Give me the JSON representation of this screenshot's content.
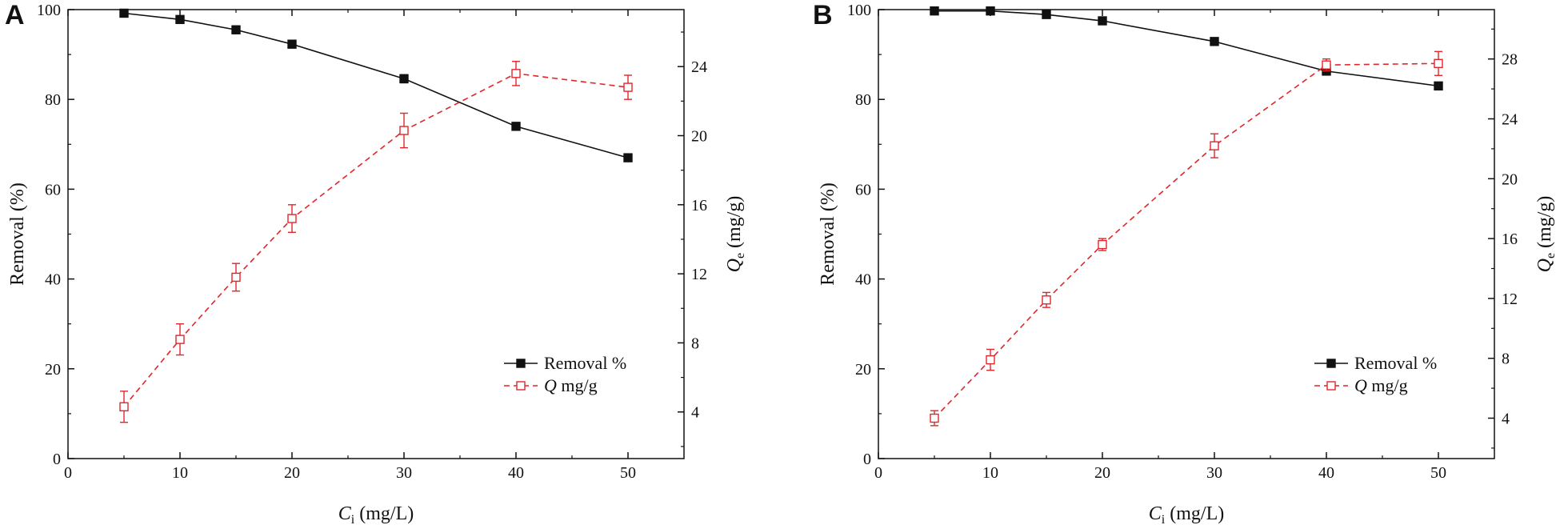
{
  "chart_data": [
    {
      "panel_label": "A",
      "type": "line",
      "x": [
        5,
        10,
        15,
        20,
        30,
        40,
        50
      ],
      "xlim": [
        0,
        55
      ],
      "xticks": [
        0,
        10,
        20,
        30,
        40,
        50
      ],
      "xlabel": {
        "var": "C",
        "sub": "i",
        "unit": " (mg/L)"
      },
      "ylabel": "Removal (%)",
      "ylim": [
        0,
        100
      ],
      "yticks": [
        0,
        20,
        40,
        60,
        80,
        100
      ],
      "y2label": {
        "var": "Q",
        "sub": "e",
        "unit": " (mg/g)"
      },
      "y2lim": [
        1.3,
        27.3
      ],
      "y2ticks": [
        4,
        8,
        12,
        16,
        20,
        24
      ],
      "series": [
        {
          "name": "Removal %",
          "axis": "left",
          "color": "#111111",
          "style": "solid",
          "marker": "filled-square",
          "values": [
            99.2,
            97.8,
            95.5,
            92.3,
            84.6,
            74.0,
            67.0
          ],
          "errors": [
            0.5,
            0.5,
            0.5,
            0.5,
            0.9,
            0.5,
            0.5
          ]
        },
        {
          "name": "mg/g",
          "name_italic": "Q",
          "axis": "right",
          "color": "#e0262b",
          "style": "dashed",
          "marker": "open-square",
          "values": [
            4.3,
            8.2,
            11.8,
            15.2,
            20.3,
            23.6,
            22.8
          ],
          "errors": [
            0.9,
            0.9,
            0.8,
            0.8,
            1.0,
            0.7,
            0.7
          ]
        }
      ]
    },
    {
      "panel_label": "B",
      "type": "line",
      "x": [
        5,
        10,
        15,
        20,
        30,
        40,
        50
      ],
      "xlim": [
        0,
        55
      ],
      "xticks": [
        0,
        10,
        20,
        30,
        40,
        50
      ],
      "xlabel": {
        "var": "C",
        "sub": "i",
        "unit": " (mg/L)"
      },
      "ylabel": "Removal (%)",
      "ylim": [
        0,
        100
      ],
      "yticks": [
        0,
        20,
        40,
        60,
        80,
        100
      ],
      "y2label": {
        "var": "Q",
        "sub": "e",
        "unit": " (mg/g)"
      },
      "y2lim": [
        1.3,
        31.3
      ],
      "y2ticks": [
        4,
        8,
        12,
        16,
        20,
        24,
        28
      ],
      "series": [
        {
          "name": "Removal %",
          "axis": "left",
          "color": "#111111",
          "style": "solid",
          "marker": "filled-square",
          "values": [
            99.7,
            99.7,
            98.9,
            97.5,
            92.9,
            86.3,
            83.0
          ],
          "errors": [
            0.5,
            0.5,
            0.5,
            0.5,
            0.5,
            0.5,
            0.6
          ]
        },
        {
          "name": "mg/g",
          "name_italic": "Q",
          "axis": "right",
          "color": "#e0262b",
          "style": "dashed",
          "marker": "open-square",
          "values": [
            4.0,
            7.9,
            11.9,
            15.6,
            22.2,
            27.6,
            27.7
          ],
          "errors": [
            0.5,
            0.7,
            0.5,
            0.4,
            0.8,
            0.4,
            0.8
          ]
        }
      ]
    }
  ]
}
